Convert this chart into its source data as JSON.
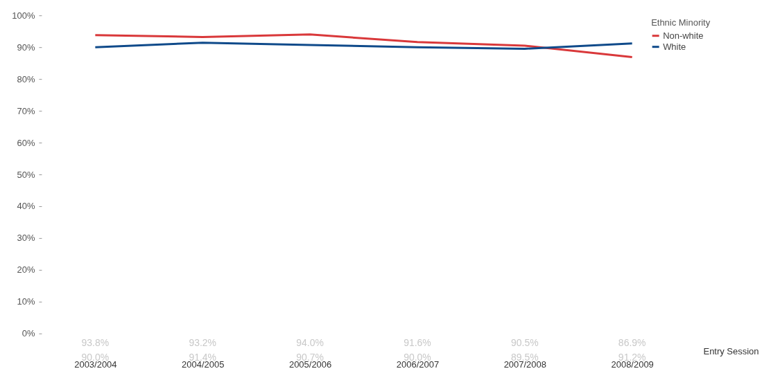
{
  "chart_data": {
    "type": "line",
    "xlabel": "Entry Session",
    "legend_title": "Ethnic Minority",
    "categories": [
      "2003/2004",
      "2004/2005",
      "2005/2006",
      "2006/2007",
      "2007/2008",
      "2008/2009"
    ],
    "series": [
      {
        "name": "Non-white",
        "color": "#d9383a",
        "values": [
          93.8,
          93.2,
          94.0,
          91.6,
          90.5,
          86.9
        ],
        "value_labels": [
          "93.8%",
          "93.2%",
          "94.0%",
          "91.6%",
          "90.5%",
          "86.9%"
        ]
      },
      {
        "name": "White",
        "color": "#0f4a8a",
        "values": [
          90.0,
          91.4,
          90.7,
          90.0,
          89.5,
          91.2
        ],
        "value_labels": [
          "90.0%",
          "91.4%",
          "90.7%",
          "90.0%",
          "89.5%",
          "91.2%"
        ]
      }
    ],
    "ylim": [
      0,
      100
    ],
    "yticks": [
      {
        "value": 0,
        "label": "0%"
      },
      {
        "value": 10,
        "label": "10%"
      },
      {
        "value": 20,
        "label": "20%"
      },
      {
        "value": 30,
        "label": "30%"
      },
      {
        "value": 40,
        "label": "40%"
      },
      {
        "value": 50,
        "label": "50%"
      },
      {
        "value": 60,
        "label": "60%"
      },
      {
        "value": 70,
        "label": "70%"
      },
      {
        "value": 80,
        "label": "80%"
      },
      {
        "value": 90,
        "label": "90%"
      },
      {
        "value": 100,
        "label": "100%"
      }
    ],
    "grid": false,
    "legend": "top right",
    "marker": "none",
    "line_style": "solid"
  }
}
